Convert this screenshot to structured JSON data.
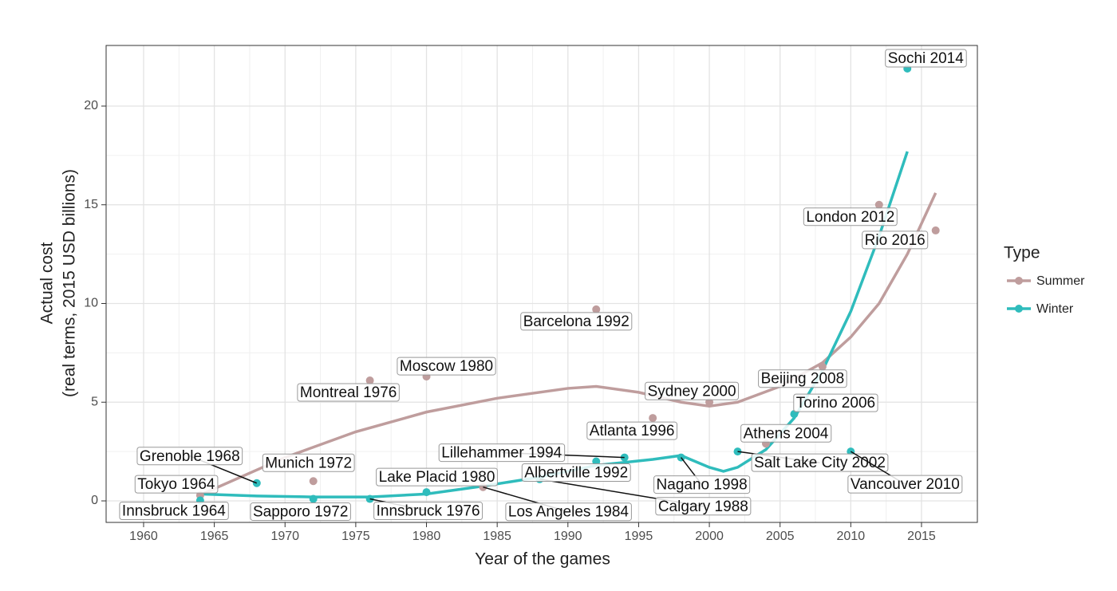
{
  "chart_data": {
    "type": "scatter",
    "x_label": "Year of the games",
    "y_label": [
      "Actual cost",
      "(real terms, 2015 USD billions)"
    ],
    "legend_title": "Type",
    "legend_position": "right",
    "grid": true,
    "xlim": [
      1957.35,
      2018.95
    ],
    "ylim": [
      -1.09,
      23.07
    ],
    "xticks": [
      1960,
      1965,
      1970,
      1975,
      1980,
      1985,
      1990,
      1995,
      2000,
      2005,
      2010,
      2015
    ],
    "yticks": [
      0,
      5,
      10,
      15,
      20
    ],
    "series": [
      {
        "name": "Summer",
        "color": "#bf9d9d",
        "x": [
          1964,
          1972,
          1976,
          1980,
          1984,
          1992,
          1996,
          2000,
          2004,
          2008,
          2012,
          2016
        ],
        "values": [
          0.28,
          1.0,
          6.1,
          6.3,
          0.7,
          9.7,
          4.2,
          5.0,
          2.9,
          6.8,
          15.0,
          13.7
        ],
        "labels": [
          "Tokyo 1964",
          "Munich 1972",
          "Montreal 1976",
          "Moscow 1980",
          "Los Angeles 1984",
          "Barcelona 1992",
          "Atlanta 1996",
          "Sydney 2000",
          "Athens 2004",
          "Beijing 2008",
          "London 2012",
          "Rio 2016"
        ],
        "smooth_x": [
          1964,
          1970,
          1975,
          1980,
          1985,
          1990,
          1992,
          1995,
          1998,
          2000,
          2002,
          2005,
          2008,
          2010,
          2012,
          2014,
          2016
        ],
        "smooth": [
          0.3,
          2.2,
          3.5,
          4.5,
          5.2,
          5.7,
          5.8,
          5.5,
          5.0,
          4.8,
          5.0,
          5.8,
          7.0,
          8.3,
          10.0,
          12.5,
          15.6
        ]
      },
      {
        "name": "Winter",
        "color": "#2fbcbc",
        "x": [
          1964,
          1968,
          1972,
          1976,
          1980,
          1988,
          1992,
          1994,
          1998,
          2002,
          2006,
          2010,
          2014
        ],
        "values": [
          0.02,
          0.9,
          0.1,
          0.1,
          0.44,
          1.1,
          2.0,
          2.2,
          2.2,
          2.5,
          4.4,
          2.5,
          21.9
        ],
        "labels": [
          "Innsbruck 1964",
          "Grenoble 1968",
          "Sapporo 1972",
          "Innsbruck 1976",
          "Lake Placid 1980",
          "Calgary 1988",
          "Albertville 1992",
          "Lillehammer 1994",
          "Nagano 1998",
          "Salt Lake City 2002",
          "Torino 2006",
          "Vancouver 2010",
          "Sochi 2014"
        ],
        "smooth_x": [
          1964,
          1968,
          1972,
          1976,
          1980,
          1984,
          1988,
          1992,
          1994,
          1996,
          1998,
          2000,
          2001,
          2002,
          2004,
          2006,
          2008,
          2010,
          2012,
          2014
        ],
        "smooth": [
          0.35,
          0.25,
          0.2,
          0.2,
          0.35,
          0.75,
          1.2,
          1.8,
          1.95,
          2.1,
          2.3,
          1.7,
          1.5,
          1.7,
          2.6,
          4.2,
          6.6,
          9.6,
          13.4,
          17.7
        ]
      }
    ]
  }
}
